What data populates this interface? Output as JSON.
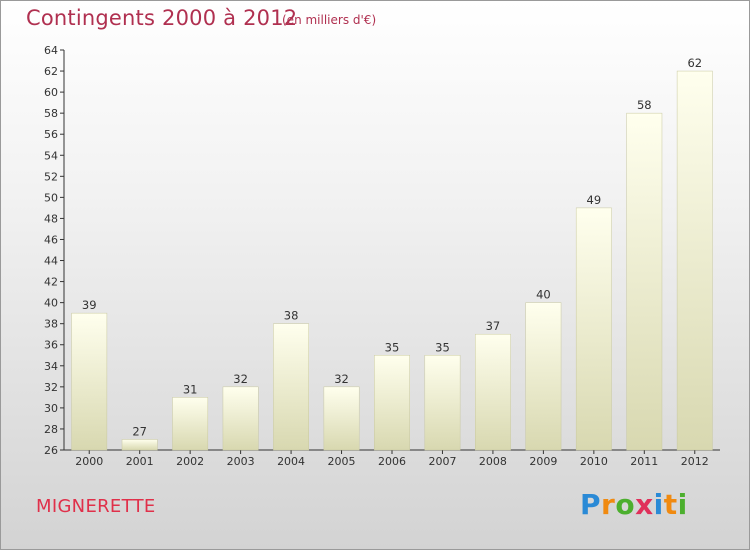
{
  "header": {
    "title": "Contingents 2000 à 2012",
    "subtitle": "(en milliers d'€)"
  },
  "footer": {
    "commune": "MIGNERETTE",
    "logo": [
      "P",
      "r",
      "o",
      "x",
      "i",
      "t",
      "i"
    ],
    "logo_colors": [
      "#2a8ad6",
      "#f08a10",
      "#4caf2e",
      "#e0305a",
      "#2a8ad6",
      "#f08a10",
      "#4caf2e"
    ]
  },
  "colors": {
    "title": "#b03050",
    "bar_top": "#ffffee",
    "bar_bottom": "#d8d8b0",
    "axis": "#333333"
  },
  "chart_data": {
    "type": "bar",
    "title": "Contingents 2000 à 2012",
    "subtitle": "(en milliers d'€)",
    "categories": [
      "2000",
      "2001",
      "2002",
      "2003",
      "2004",
      "2005",
      "2006",
      "2007",
      "2008",
      "2009",
      "2010",
      "2011",
      "2012"
    ],
    "values": [
      39,
      27,
      31,
      32,
      38,
      32,
      35,
      35,
      37,
      40,
      49,
      58,
      62
    ],
    "ylim": [
      26,
      64
    ],
    "ytick_step": 2,
    "grid": false,
    "xlabel": "",
    "ylabel": ""
  }
}
